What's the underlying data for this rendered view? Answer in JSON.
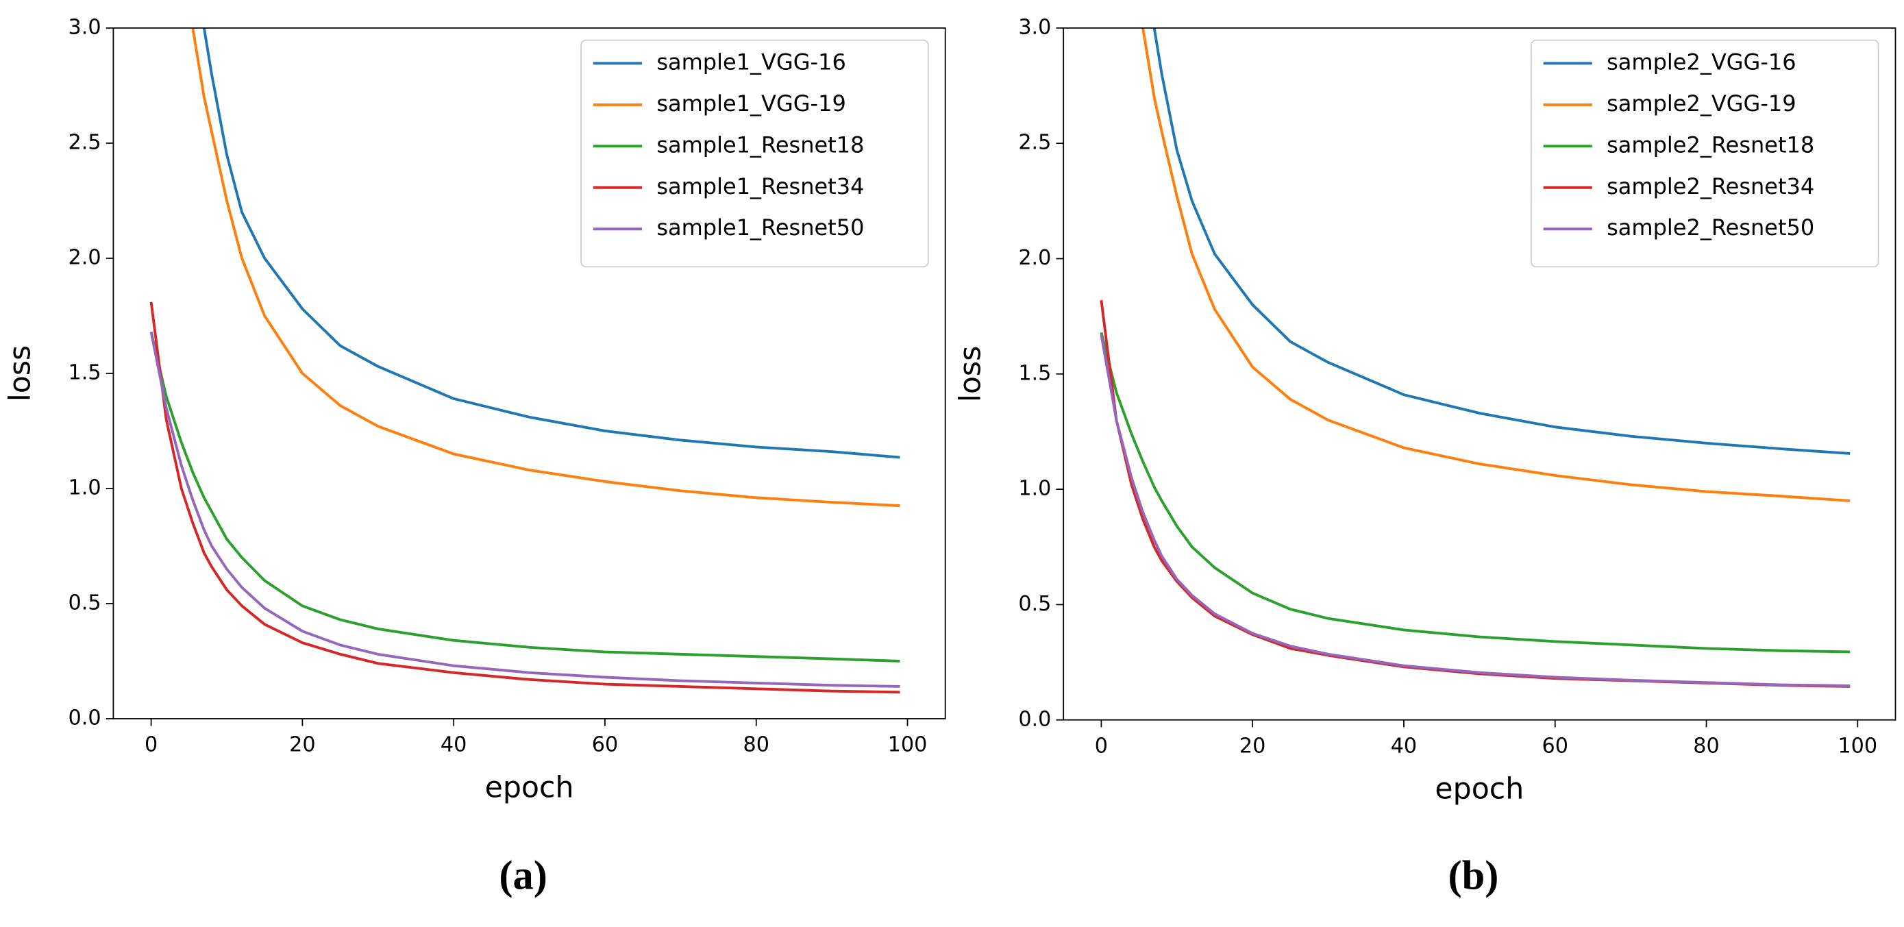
{
  "chart_data": [
    {
      "type": "line",
      "caption": "(a)",
      "xlabel": "epoch",
      "ylabel": "loss",
      "x": [
        0,
        2,
        4,
        5.5,
        7,
        8,
        10,
        12,
        15,
        20,
        25,
        30,
        40,
        50,
        60,
        70,
        80,
        90,
        99
      ],
      "series": [
        {
          "name": "sample1_VGG-16",
          "color": "#1f77b4",
          "values": [
            null,
            null,
            null,
            null,
            3.0,
            2.8,
            2.45,
            2.2,
            2.0,
            1.78,
            1.62,
            1.53,
            1.39,
            1.31,
            1.25,
            1.21,
            1.18,
            1.16,
            1.135
          ]
        },
        {
          "name": "sample1_VGG-19",
          "color": "#ff7f0e",
          "values": [
            null,
            null,
            null,
            3.0,
            2.7,
            2.55,
            2.25,
            2.0,
            1.75,
            1.5,
            1.36,
            1.27,
            1.15,
            1.08,
            1.03,
            0.99,
            0.96,
            0.94,
            0.925
          ]
        },
        {
          "name": "sample1_Resnet18",
          "color": "#2ca02c",
          "values": [
            1.68,
            1.4,
            1.2,
            1.07,
            0.96,
            0.9,
            0.78,
            0.7,
            0.6,
            0.49,
            0.43,
            0.39,
            0.34,
            0.31,
            0.29,
            0.28,
            0.27,
            0.26,
            0.25
          ]
        },
        {
          "name": "sample1_Resnet34",
          "color": "#d62728",
          "values": [
            1.81,
            1.3,
            1.0,
            0.85,
            0.72,
            0.66,
            0.56,
            0.49,
            0.41,
            0.33,
            0.28,
            0.24,
            0.2,
            0.17,
            0.15,
            0.14,
            0.13,
            0.12,
            0.115
          ]
        },
        {
          "name": "sample1_Resnet50",
          "color": "#9467bd",
          "values": [
            1.68,
            1.35,
            1.1,
            0.95,
            0.82,
            0.75,
            0.65,
            0.57,
            0.48,
            0.38,
            0.32,
            0.28,
            0.23,
            0.2,
            0.18,
            0.165,
            0.155,
            0.145,
            0.14
          ]
        }
      ],
      "xlim": [
        -5,
        105
      ],
      "xticks": [
        0,
        20,
        40,
        60,
        80,
        100
      ],
      "ylim": [
        0,
        3
      ],
      "yticks": [
        {
          "value": 0,
          "label": "0.0"
        },
        0.5,
        {
          "value": 1,
          "label": "1.0"
        },
        1.5,
        {
          "value": 2,
          "label": "2.0"
        },
        2.5,
        {
          "value": 3,
          "label": "3.0"
        }
      ],
      "legend": "upper right"
    },
    {
      "type": "line",
      "caption": "(b)",
      "xlabel": "epoch",
      "ylabel": "loss",
      "x": [
        0,
        2,
        4,
        5.5,
        7,
        8,
        10,
        12,
        15,
        20,
        25,
        30,
        40,
        50,
        60,
        70,
        80,
        90,
        99
      ],
      "series": [
        {
          "name": "sample2_VGG-16",
          "color": "#1f77b4",
          "values": [
            null,
            null,
            null,
            null,
            3.0,
            2.8,
            2.47,
            2.25,
            2.02,
            1.8,
            1.64,
            1.55,
            1.41,
            1.33,
            1.27,
            1.23,
            1.2,
            1.175,
            1.155
          ]
        },
        {
          "name": "sample2_VGG-19",
          "color": "#ff7f0e",
          "values": [
            null,
            null,
            null,
            3.0,
            2.7,
            2.55,
            2.27,
            2.02,
            1.78,
            1.53,
            1.39,
            1.3,
            1.18,
            1.11,
            1.06,
            1.02,
            0.99,
            0.97,
            0.95
          ]
        },
        {
          "name": "sample2_Resnet18",
          "color": "#2ca02c",
          "values": [
            1.68,
            1.42,
            1.24,
            1.12,
            1.01,
            0.95,
            0.84,
            0.75,
            0.66,
            0.55,
            0.48,
            0.44,
            0.39,
            0.36,
            0.34,
            0.325,
            0.31,
            0.3,
            0.295
          ]
        },
        {
          "name": "sample2_Resnet34",
          "color": "#d62728",
          "values": [
            1.82,
            1.3,
            1.02,
            0.87,
            0.75,
            0.69,
            0.6,
            0.53,
            0.45,
            0.37,
            0.31,
            0.28,
            0.23,
            0.2,
            0.18,
            0.17,
            0.16,
            0.15,
            0.145
          ]
        },
        {
          "name": "sample2_Resnet50",
          "color": "#9467bd",
          "values": [
            1.67,
            1.3,
            1.05,
            0.9,
            0.78,
            0.71,
            0.61,
            0.54,
            0.46,
            0.375,
            0.32,
            0.285,
            0.235,
            0.205,
            0.185,
            0.172,
            0.162,
            0.152,
            0.148
          ]
        }
      ],
      "xlim": [
        -5,
        105
      ],
      "xticks": [
        0,
        20,
        40,
        60,
        80,
        100
      ],
      "ylim": [
        0,
        3
      ],
      "yticks": [
        {
          "value": 0,
          "label": "0.0"
        },
        0.5,
        {
          "value": 1,
          "label": "1.0"
        },
        1.5,
        {
          "value": 2,
          "label": "2.0"
        },
        2.5,
        {
          "value": 3,
          "label": "3.0"
        }
      ],
      "legend": "upper right"
    }
  ]
}
